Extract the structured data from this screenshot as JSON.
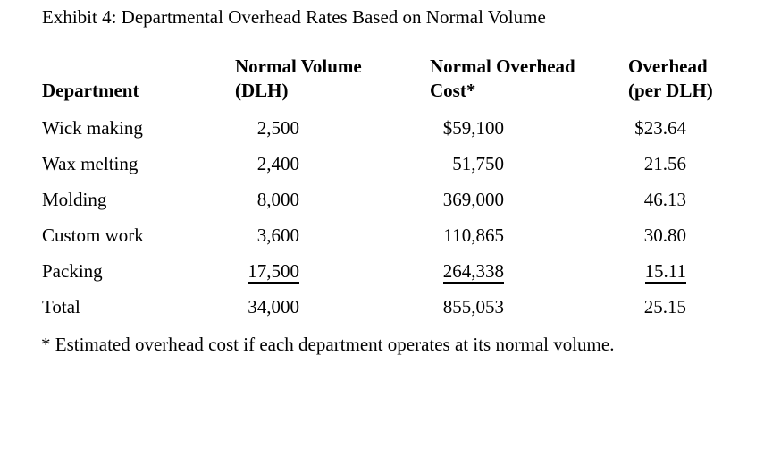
{
  "exhibit": {
    "title": "Exhibit 4: Departmental Overhead Rates Based on Normal Volume",
    "footnote": "* Estimated overhead cost if each department operates at its normal volume."
  },
  "table": {
    "headers": {
      "department": {
        "line1": "",
        "line2": "Department"
      },
      "normal_volume": {
        "line1": "Normal Volume",
        "line2": "(DLH)"
      },
      "overhead_cost": {
        "line1": "Normal Overhead",
        "line2": "Cost*"
      },
      "overhead_rate": {
        "line1": "Overhead",
        "line2": "(per DLH)"
      }
    },
    "rows": [
      {
        "department": "Wick making",
        "normal_volume_dlh": "2,500",
        "normal_overhead_cost": "$59,100",
        "overhead_per_dlh": "$23.64"
      },
      {
        "department": "Wax melting",
        "normal_volume_dlh": "2,400",
        "normal_overhead_cost": "51,750",
        "overhead_per_dlh": "21.56"
      },
      {
        "department": "Molding",
        "normal_volume_dlh": "8,000",
        "normal_overhead_cost": "369,000",
        "overhead_per_dlh": "46.13"
      },
      {
        "department": "Custom work",
        "normal_volume_dlh": "3,600",
        "normal_overhead_cost": "110,865",
        "overhead_per_dlh": "30.80"
      },
      {
        "department": "Packing",
        "normal_volume_dlh": "17,500",
        "normal_overhead_cost": "264,338",
        "overhead_per_dlh": "15.11"
      },
      {
        "department": "Total",
        "normal_volume_dlh": "34,000",
        "normal_overhead_cost": "855,053",
        "overhead_per_dlh": "25.15"
      }
    ],
    "underlined_row": "Packing"
  },
  "colors": {
    "text": "#000000",
    "background": "#ffffff"
  }
}
